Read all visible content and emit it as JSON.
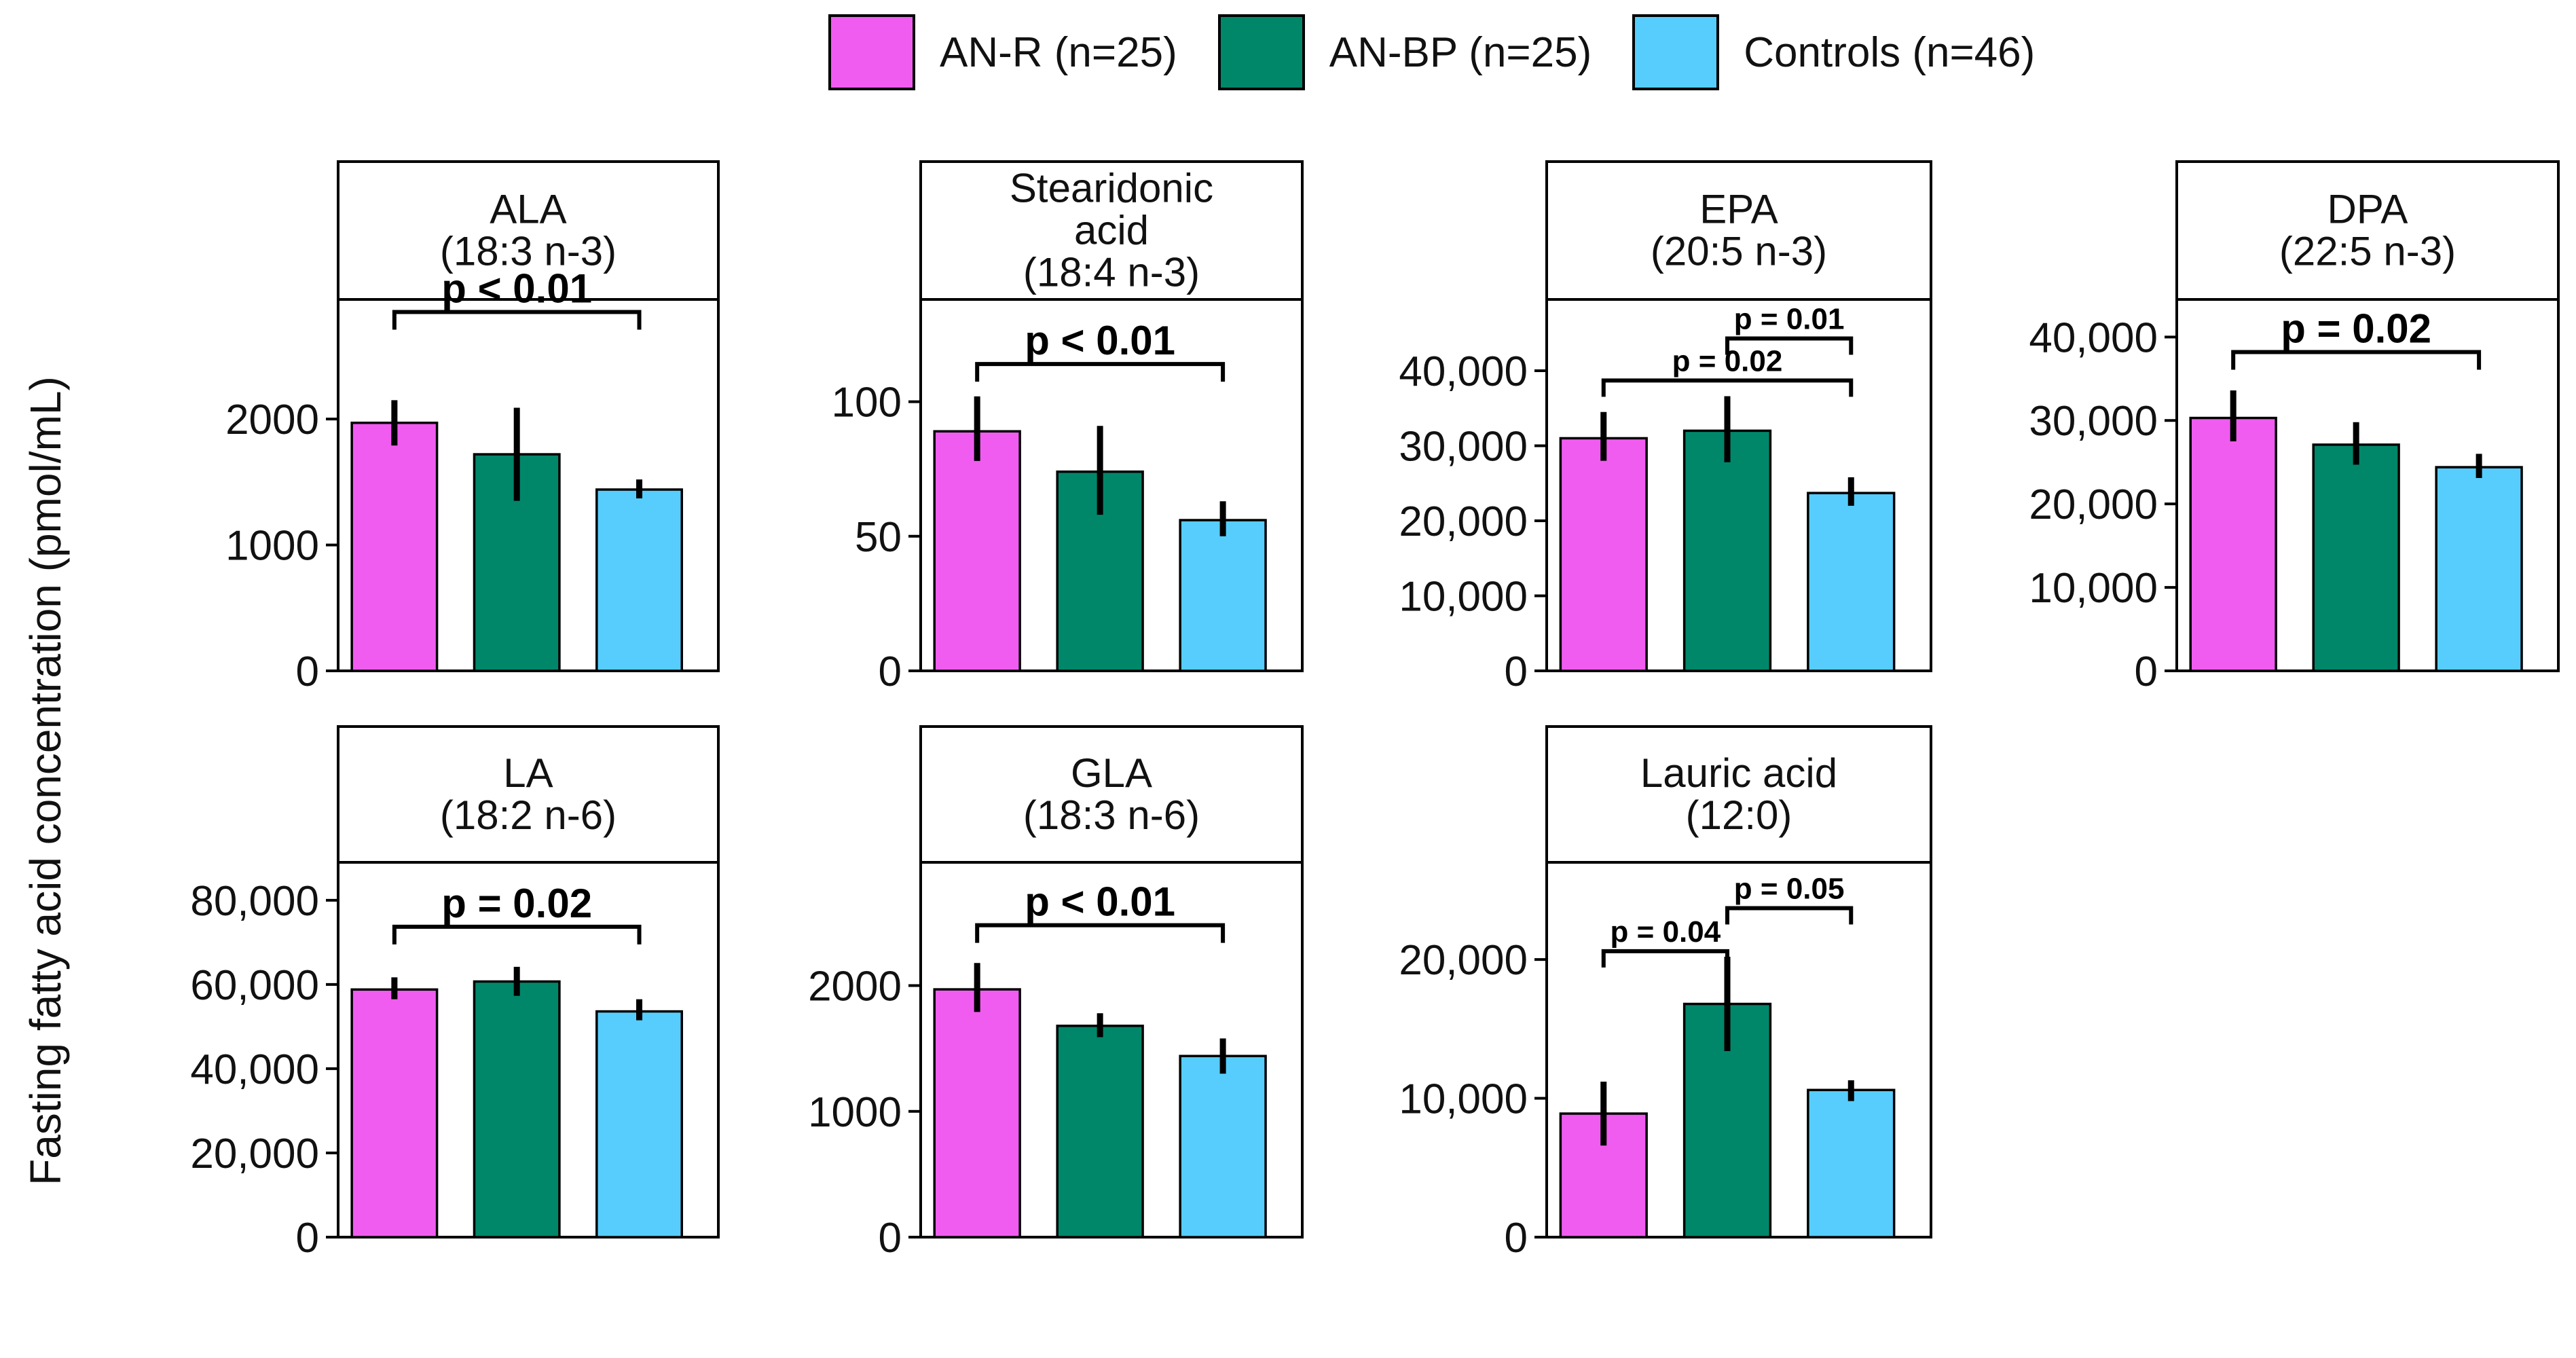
{
  "legend": [
    {
      "label": "AN-R (n=25)",
      "color": "#F05CF0"
    },
    {
      "label": "AN-BP (n=25)",
      "color": "#00876A"
    },
    {
      "label": "Controls (n=46)",
      "color": "#56CDFD"
    }
  ],
  "ylabel": "Fasting fatty acid concentration (pmol/mL)",
  "chart_data": [
    {
      "type": "bar",
      "title": [
        "ALA",
        "(18:3 n-3)"
      ],
      "categories": [
        "AN-R (n=25)",
        "AN-BP (n=25)",
        "Controls (n=46)"
      ],
      "values": [
        1970,
        1720,
        1440
      ],
      "errors": [
        [
          1790,
          2150
        ],
        [
          1350,
          2090
        ],
        [
          1370,
          1520
        ]
      ],
      "ylim": [
        0,
        2950
      ],
      "ticks": [
        0,
        1000,
        2000
      ],
      "tick_labels": [
        "0",
        "1000",
        "2000"
      ],
      "annotations": [
        {
          "text": "p < 0.01",
          "from": 0,
          "to": 2,
          "y": 2850,
          "style": "large"
        }
      ]
    },
    {
      "type": "bar",
      "title": [
        "Stearidonic",
        "acid",
        "(18:4 n-3)"
      ],
      "categories": [
        "AN-R (n=25)",
        "AN-BP (n=25)",
        "Controls (n=46)"
      ],
      "values": [
        89,
        74,
        56
      ],
      "errors": [
        [
          78,
          102
        ],
        [
          58,
          91
        ],
        [
          50,
          63
        ]
      ],
      "ylim": [
        0,
        138
      ],
      "ticks": [
        0,
        50,
        100
      ],
      "tick_labels": [
        "0",
        "50",
        "100"
      ],
      "annotations": [
        {
          "text": "p < 0.01",
          "from": 0,
          "to": 2,
          "y": 114,
          "style": "large"
        }
      ]
    },
    {
      "type": "bar",
      "title": [
        "EPA",
        "(20:5 n-3)"
      ],
      "categories": [
        "AN-R (n=25)",
        "AN-BP (n=25)",
        "Controls (n=46)"
      ],
      "values": [
        31000,
        32000,
        23700
      ],
      "errors": [
        [
          28000,
          34500
        ],
        [
          27800,
          36600
        ],
        [
          22000,
          25800
        ]
      ],
      "ylim": [
        0,
        49500
      ],
      "ticks": [
        0,
        10000,
        20000,
        30000,
        40000
      ],
      "tick_labels": [
        "0",
        "10,000",
        "20,000",
        "30,000",
        "40,000"
      ],
      "annotations": [
        {
          "text": "p = 0.02",
          "from": 0,
          "to": 2,
          "y": 38700,
          "style": "small"
        },
        {
          "text": "p = 0.01",
          "from": 1,
          "to": 2,
          "y": 44300,
          "style": "small"
        }
      ]
    },
    {
      "type": "bar",
      "title": [
        "DPA",
        "(22:5 n-3)"
      ],
      "categories": [
        "AN-R (n=25)",
        "AN-BP (n=25)",
        "Controls (n=46)"
      ],
      "values": [
        30300,
        27100,
        24400
      ],
      "errors": [
        [
          27500,
          33600
        ],
        [
          24700,
          29800
        ],
        [
          23100,
          26000
        ]
      ],
      "ylim": [
        0,
        44500
      ],
      "ticks": [
        0,
        10000,
        20000,
        30000,
        40000
      ],
      "tick_labels": [
        "0",
        "10,000",
        "20,000",
        "30,000",
        "40,000"
      ],
      "annotations": [
        {
          "text": "p = 0.02",
          "from": 0,
          "to": 2,
          "y": 38200,
          "style": "large"
        }
      ]
    },
    {
      "type": "bar",
      "title": [
        "LA",
        "(18:2 n-6)"
      ],
      "categories": [
        "AN-R (n=25)",
        "AN-BP (n=25)",
        "Controls (n=46)"
      ],
      "values": [
        58800,
        60700,
        53600
      ],
      "errors": [
        [
          56500,
          61700
        ],
        [
          57300,
          64200
        ],
        [
          51500,
          56500
        ]
      ],
      "ylim": [
        0,
        89000
      ],
      "ticks": [
        0,
        20000,
        40000,
        60000,
        80000
      ],
      "tick_labels": [
        "0",
        "20,000",
        "40,000",
        "60,000",
        "80,000"
      ],
      "annotations": [
        {
          "text": "p = 0.02",
          "from": 0,
          "to": 2,
          "y": 73700,
          "style": "large"
        }
      ]
    },
    {
      "type": "bar",
      "title": [
        "GLA",
        "(18:3 n-6)"
      ],
      "categories": [
        "AN-R (n=25)",
        "AN-BP (n=25)",
        "Controls (n=46)"
      ],
      "values": [
        1970,
        1680,
        1440
      ],
      "errors": [
        [
          1790,
          2180
        ],
        [
          1590,
          1780
        ],
        [
          1300,
          1580
        ]
      ],
      "ylim": [
        0,
        2980
      ],
      "ticks": [
        0,
        1000,
        2000
      ],
      "tick_labels": [
        "0",
        "1000",
        "2000"
      ],
      "annotations": [
        {
          "text": "p < 0.01",
          "from": 0,
          "to": 2,
          "y": 2480,
          "style": "large"
        }
      ]
    },
    {
      "type": "bar",
      "title": [
        "Lauric acid",
        "(12:0)"
      ],
      "categories": [
        "AN-R (n=25)",
        "AN-BP (n=25)",
        "Controls (n=46)"
      ],
      "values": [
        8900,
        16800,
        10600
      ],
      "errors": [
        [
          6600,
          11200
        ],
        [
          13400,
          20200
        ],
        [
          9800,
          11300
        ]
      ],
      "ylim": [
        0,
        27000
      ],
      "ticks": [
        0,
        10000,
        20000
      ],
      "tick_labels": [
        "0",
        "10,000",
        "20,000"
      ],
      "annotations": [
        {
          "text": "p = 0.04",
          "from": 0,
          "to": 1,
          "y": 20600,
          "style": "small"
        },
        {
          "text": "p = 0.05",
          "from": 1,
          "to": 2,
          "y": 23700,
          "style": "small"
        }
      ]
    }
  ]
}
